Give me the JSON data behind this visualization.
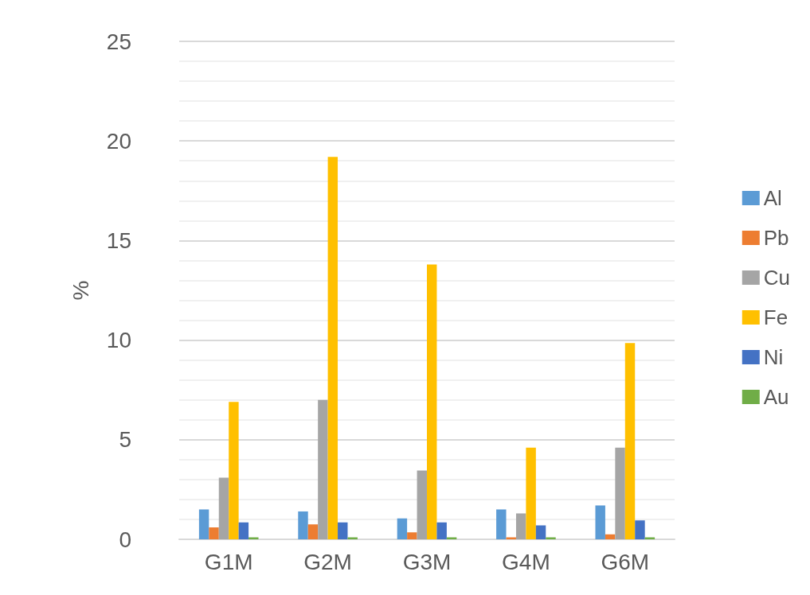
{
  "chart_data": {
    "type": "bar",
    "ylabel": "%",
    "categories": [
      "G1M",
      "G2M",
      "G3M",
      "G4M",
      "G6M"
    ],
    "series": [
      {
        "name": "Al",
        "color": "#5b9bd5",
        "values": [
          1.5,
          1.4,
          1.05,
          1.5,
          1.7
        ]
      },
      {
        "name": "Pb",
        "color": "#ed7d31",
        "values": [
          0.6,
          0.75,
          0.35,
          0.1,
          0.25
        ]
      },
      {
        "name": "Cu",
        "color": "#a5a5a5",
        "values": [
          3.1,
          7.0,
          3.45,
          1.3,
          4.6
        ]
      },
      {
        "name": "Fe",
        "color": "#ffc000",
        "values": [
          6.9,
          19.2,
          13.8,
          4.6,
          9.85
        ]
      },
      {
        "name": "Ni",
        "color": "#4472c4",
        "values": [
          0.85,
          0.85,
          0.85,
          0.7,
          0.95
        ]
      },
      {
        "name": "Au",
        "color": "#70ad47",
        "values": [
          0.1,
          0.1,
          0.1,
          0.1,
          0.1
        ]
      }
    ],
    "ylim": [
      0,
      25
    ],
    "yticks": [
      0,
      5,
      10,
      15,
      20,
      25
    ],
    "grid": true,
    "legend": "right"
  }
}
